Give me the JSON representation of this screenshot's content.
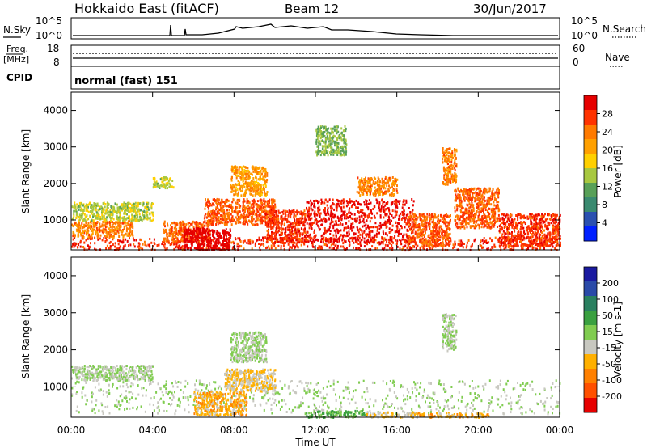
{
  "header": {
    "station": "Hokkaido East (fitACF)",
    "beam": "Beam 12",
    "date": "30/Jun/2017"
  },
  "sky_panel": {
    "left_label": "N.Sky",
    "left_ticks": [
      "10^5",
      "10^0"
    ],
    "right_ticks": [
      "10^5",
      "10^0"
    ],
    "right_label": "N.Search"
  },
  "freq_panel": {
    "left_label_1": "Freq.",
    "left_label_2": "[MHz]",
    "left_ticks": [
      "18",
      "8"
    ],
    "right_ticks": [
      "60",
      "0"
    ],
    "right_label": "Nave"
  },
  "cpid_panel": {
    "left_label": "CPID",
    "mode_text": "normal (fast) 151"
  },
  "axes": {
    "ylabel": "Slant Range [km]",
    "xlabel": "Time UT",
    "y_ticks": [
      "1000",
      "2000",
      "3000",
      "4000"
    ],
    "x_ticks": [
      "00:00",
      "04:00",
      "08:00",
      "12:00",
      "16:00",
      "20:00",
      "00:00"
    ]
  },
  "colorbars": {
    "power": {
      "label": "Power [dB]",
      "ticks": [
        "28",
        "24",
        "20",
        "16",
        "12",
        "8",
        "4"
      ],
      "colors": [
        "#e60000",
        "#ff3300",
        "#ff7a00",
        "#ffa000",
        "#ffd000",
        "#a8c840",
        "#58a058",
        "#3a8a70",
        "#2a50b0",
        "#0020ff"
      ]
    },
    "velocity": {
      "label": "Velocity [m s-1]",
      "ticks": [
        "200",
        "100",
        "50",
        "15",
        "-15",
        "-50",
        "-100",
        "-200"
      ],
      "colors": [
        "#1a1aa0",
        "#2a4aa8",
        "#2a8060",
        "#3aa040",
        "#80cc50",
        "#c8c8c0",
        "#ffb000",
        "#ff8000",
        "#ff5000",
        "#e60000"
      ]
    }
  },
  "chart_data": [
    {
      "type": "heatmap",
      "title": "",
      "xlabel": "Time UT",
      "ylabel": "Slant Range [km]",
      "xlim": [
        0,
        24
      ],
      "ylim": [
        180,
        4500
      ],
      "quantity": "Power",
      "unit": "dB",
      "colorbar_range": [
        0,
        30
      ],
      "regions": [
        {
          "t0": 0,
          "t1": 24,
          "r0": 200,
          "r1": 550,
          "value": 26
        },
        {
          "t0": 0,
          "t1": 3,
          "r0": 550,
          "r1": 1000,
          "value": 22
        },
        {
          "t0": 0,
          "t1": 4,
          "r0": 1000,
          "r1": 1500,
          "value": 14
        },
        {
          "t0": 4.5,
          "t1": 6.8,
          "r0": 400,
          "r1": 1000,
          "value": 24
        },
        {
          "t0": 5.5,
          "t1": 7.8,
          "r0": 200,
          "r1": 800,
          "value": 30
        },
        {
          "t0": 6.5,
          "t1": 10,
          "r0": 900,
          "r1": 1600,
          "value": 24
        },
        {
          "t0": 7.8,
          "t1": 9.6,
          "r0": 1700,
          "r1": 2500,
          "value": 20
        },
        {
          "t0": 9.5,
          "t1": 11.5,
          "r0": 400,
          "r1": 1300,
          "value": 26
        },
        {
          "t0": 11.5,
          "t1": 16.8,
          "r0": 400,
          "r1": 1600,
          "value": 28
        },
        {
          "t0": 14,
          "t1": 16,
          "r0": 1700,
          "r1": 2200,
          "value": 22
        },
        {
          "t0": 16.5,
          "t1": 18.6,
          "r0": 300,
          "r1": 1200,
          "value": 24
        },
        {
          "t0": 18.2,
          "t1": 18.9,
          "r0": 2000,
          "r1": 3000,
          "value": 22
        },
        {
          "t0": 18.8,
          "t1": 21,
          "r0": 800,
          "r1": 1900,
          "value": 24
        },
        {
          "t0": 21,
          "t1": 24,
          "r0": 300,
          "r1": 1200,
          "value": 26
        },
        {
          "t0": 4,
          "t1": 5,
          "r0": 1900,
          "r1": 2200,
          "value": 14
        },
        {
          "t0": 12,
          "t1": 13.5,
          "r0": 2800,
          "r1": 3600,
          "value": 12
        }
      ]
    },
    {
      "type": "heatmap",
      "title": "",
      "xlabel": "Time UT",
      "ylabel": "Slant Range [km]",
      "xlim": [
        0,
        24
      ],
      "ylim": [
        180,
        4500
      ],
      "quantity": "Velocity",
      "unit": "m s-1",
      "colorbar_range": [
        -200,
        200
      ],
      "regions": [
        {
          "t0": 0,
          "t1": 24,
          "r0": 300,
          "r1": 1200,
          "value": 0
        },
        {
          "t0": 0,
          "t1": 4,
          "r0": 1200,
          "r1": 1600,
          "value": 0
        },
        {
          "t0": 6,
          "t1": 8.6,
          "r0": 250,
          "r1": 900,
          "value": -60
        },
        {
          "t0": 7.5,
          "t1": 10,
          "r0": 900,
          "r1": 1500,
          "value": -40
        },
        {
          "t0": 7.8,
          "t1": 9.6,
          "r0": 1700,
          "r1": 2500,
          "value": 0
        },
        {
          "t0": 11.5,
          "t1": 14.5,
          "r0": 200,
          "r1": 380,
          "value": 40
        },
        {
          "t0": 14.5,
          "t1": 17,
          "r0": 200,
          "r1": 350,
          "value": -40
        },
        {
          "t0": 17,
          "t1": 20.5,
          "r0": 200,
          "r1": 330,
          "value": -60
        },
        {
          "t0": 18.2,
          "t1": 18.9,
          "r0": 2000,
          "r1": 3000,
          "value": 0
        }
      ]
    }
  ]
}
